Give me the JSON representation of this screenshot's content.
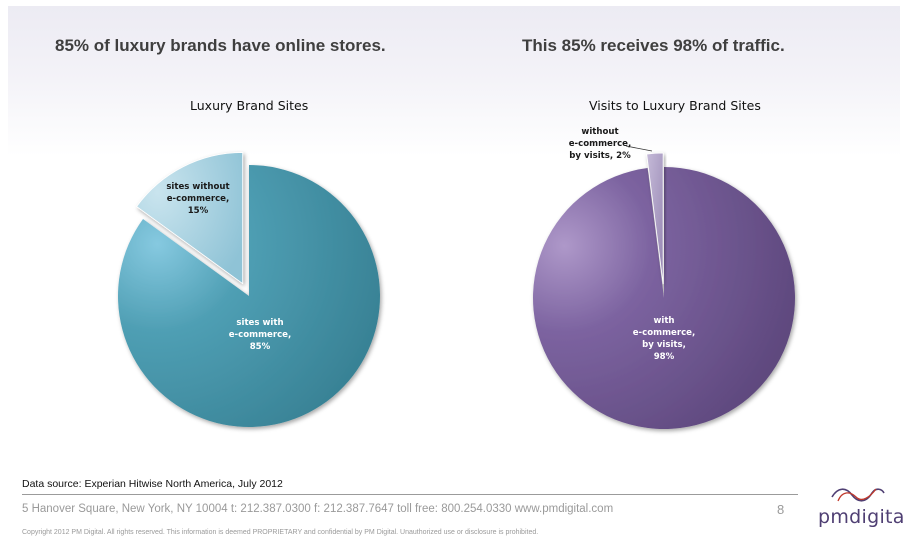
{
  "headline_left": "85% of luxury brands have online stores.",
  "headline_right": "This 85% receives 98% of traffic.",
  "chart_data": [
    {
      "type": "pie",
      "title": "Luxury Brand Sites",
      "slices": [
        {
          "label_lines": [
            "sites with",
            "e-commerce,",
            "85%"
          ],
          "value": 85,
          "color": "#3f8da0"
        },
        {
          "label_lines": [
            "sites without",
            "e-commerce,",
            "15%"
          ],
          "value": 15,
          "color": "#a3cfe0",
          "exploded": true
        }
      ]
    },
    {
      "type": "pie",
      "title": "Visits to Luxury Brand Sites",
      "slices": [
        {
          "label_lines": [
            "with",
            "e-commerce,",
            "by visits,",
            "98%"
          ],
          "value": 98,
          "color": "#6a5187"
        },
        {
          "label_lines": [
            "without",
            "e-commerce,",
            "by visits, 2%"
          ],
          "value": 2,
          "color": "#a79bbf",
          "exploded": true
        }
      ]
    }
  ],
  "footer": {
    "source": "Data source:  Experian Hitwise North America, July 2012",
    "address": "5 Hanover Square, New York, NY 10004  t: 212.387.0300  f: 212.387.7647  toll free: 800.254.0330  www.pmdigital.com",
    "page_number": "8",
    "copyright": "Copyright 2012 PM Digital. All rights reserved.  This information is deemed PROPRIETARY and confidential by PM Digital. Unauthorized use or disclosure is prohibited."
  },
  "logo": {
    "text": "pmdigital",
    "icon": "infinity-loop-icon"
  }
}
